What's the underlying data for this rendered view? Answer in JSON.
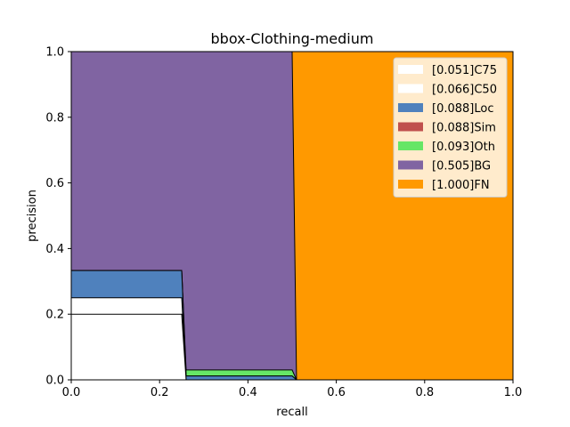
{
  "chart_data": {
    "type": "area",
    "title": "bbox-Clothing-medium",
    "xlabel": "recall",
    "ylabel": "precision",
    "xlim": [
      0,
      1
    ],
    "ylim": [
      0,
      1
    ],
    "xticks": [
      "0.0",
      "0.2",
      "0.4",
      "0.6",
      "0.8",
      "1.0"
    ],
    "yticks": [
      "0.0",
      "0.2",
      "0.4",
      "0.6",
      "0.8",
      "1.0"
    ],
    "grid": false,
    "legend_position": "top-right",
    "series": [
      {
        "name": "[1.000]FN",
        "color": "#ff9900",
        "x": [
          0,
          0.51,
          0.51,
          1.0
        ],
        "y": [
          1,
          1,
          1,
          1
        ]
      },
      {
        "name": "[0.505]BG",
        "color": "#8064a2",
        "x": [
          0,
          0.5,
          0.51,
          1.0
        ],
        "y": [
          1,
          1,
          0,
          0
        ]
      },
      {
        "name": "[0.093]Oth",
        "color": "#66e666",
        "x": [
          0,
          0.25,
          0.26,
          0.5,
          0.51,
          1.0
        ],
        "y": [
          0.333,
          0.333,
          0.03,
          0.03,
          0,
          0
        ]
      },
      {
        "name": "[0.088]Sim",
        "color": "#c0504d",
        "x": [
          0,
          0.25,
          0.26,
          0.5,
          0.51,
          1.0
        ],
        "y": [
          0.333,
          0.333,
          0.012,
          0.012,
          0,
          0
        ]
      },
      {
        "name": "[0.088]Loc",
        "color": "#4f81bd",
        "x": [
          0,
          0.25,
          0.26,
          0.5,
          0.51,
          1.0
        ],
        "y": [
          0.333,
          0.333,
          0.012,
          0.012,
          0,
          0
        ]
      },
      {
        "name": "[0.066]C50",
        "color": "#ffffff",
        "x": [
          0,
          0.25,
          0.26,
          1.0
        ],
        "y": [
          0.25,
          0.25,
          0,
          0
        ]
      },
      {
        "name": "[0.051]C75",
        "color": "#ffffff",
        "x": [
          0,
          0.25,
          0.26,
          1.0
        ],
        "y": [
          0.2,
          0.2,
          0,
          0
        ]
      }
    ],
    "legend": [
      "[0.051]C75",
      "[0.066]C50",
      "[0.088]Loc",
      "[0.088]Sim",
      "[0.093]Oth",
      "[0.505]BG",
      "[1.000]FN"
    ]
  }
}
